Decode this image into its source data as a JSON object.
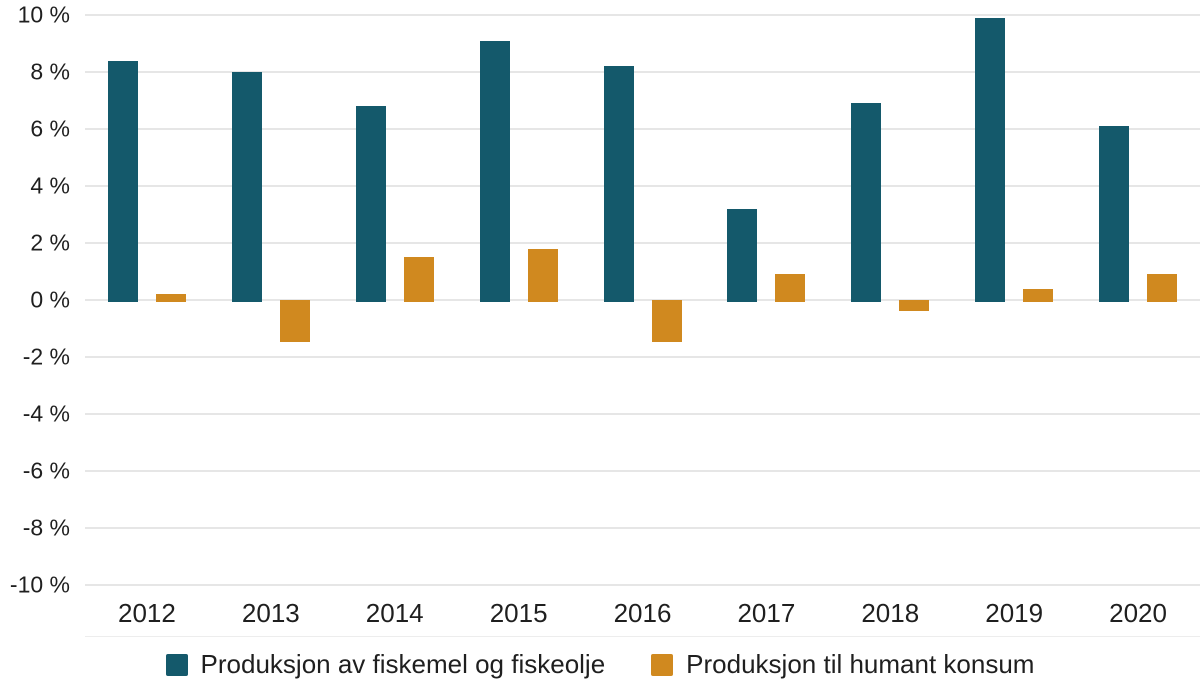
{
  "chart_data": {
    "type": "bar",
    "categories": [
      "2012",
      "2013",
      "2014",
      "2015",
      "2016",
      "2017",
      "2018",
      "2019",
      "2020"
    ],
    "series": [
      {
        "name": "Produksjon av fiskemel og fiskeolje",
        "color": "#14596b",
        "values": [
          8.4,
          8.0,
          6.8,
          9.1,
          8.2,
          3.2,
          6.9,
          9.9,
          6.1
        ]
      },
      {
        "name": "Produksjon til humant konsum",
        "color": "#d0891f",
        "values": [
          0.2,
          -1.4,
          1.5,
          1.8,
          -1.4,
          0.9,
          -0.3,
          0.4,
          0.9
        ]
      }
    ],
    "ylim": [
      -10,
      10
    ],
    "y_tick_step": 2,
    "y_tick_labels": [
      "10 %",
      "8 %",
      "6 %",
      "4 %",
      "2 %",
      "0 %",
      "-2 %",
      "-4 %",
      "-6 %",
      "-8 %",
      "-10 %"
    ],
    "grid": true,
    "legend_position": "bottom"
  },
  "colors": {
    "grid": "#e6e6e6",
    "text": "#1f1f1f",
    "background": "#ffffff"
  }
}
